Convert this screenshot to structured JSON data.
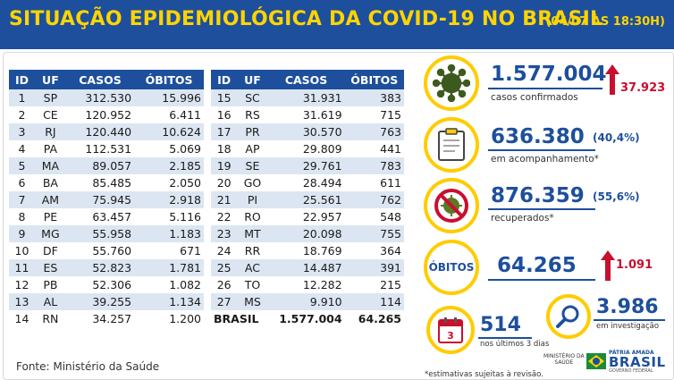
{
  "header": {
    "title": "SITUAÇÃO EPIDEMIOLÓGICA DA COVID-19 NO BRASIL",
    "date": "(04/07 ÀS 18:30H)"
  },
  "table": {
    "columns": [
      "ID",
      "UF",
      "CASOS",
      "ÓBITOS"
    ],
    "left_rows": [
      [
        "1",
        "SP",
        "312.530",
        "15.996"
      ],
      [
        "2",
        "CE",
        "120.952",
        "6.411"
      ],
      [
        "3",
        "RJ",
        "120.440",
        "10.624"
      ],
      [
        "4",
        "PA",
        "112.531",
        "5.069"
      ],
      [
        "5",
        "MA",
        "89.057",
        "2.185"
      ],
      [
        "6",
        "BA",
        "85.485",
        "2.050"
      ],
      [
        "7",
        "AM",
        "75.945",
        "2.918"
      ],
      [
        "8",
        "PE",
        "63.457",
        "5.116"
      ],
      [
        "9",
        "MG",
        "55.958",
        "1.183"
      ],
      [
        "10",
        "DF",
        "55.760",
        "671"
      ],
      [
        "11",
        "ES",
        "52.823",
        "1.781"
      ],
      [
        "12",
        "PB",
        "52.306",
        "1.082"
      ],
      [
        "13",
        "AL",
        "39.255",
        "1.134"
      ],
      [
        "14",
        "RN",
        "34.257",
        "1.200"
      ]
    ],
    "right_rows": [
      [
        "15",
        "SC",
        "31.931",
        "383"
      ],
      [
        "16",
        "RS",
        "31.619",
        "715"
      ],
      [
        "17",
        "PR",
        "30.570",
        "763"
      ],
      [
        "18",
        "AP",
        "29.809",
        "441"
      ],
      [
        "19",
        "SE",
        "29.761",
        "783"
      ],
      [
        "20",
        "GO",
        "28.494",
        "611"
      ],
      [
        "21",
        "PI",
        "25.561",
        "762"
      ],
      [
        "22",
        "RO",
        "22.957",
        "548"
      ],
      [
        "23",
        "MT",
        "20.098",
        "755"
      ],
      [
        "24",
        "RR",
        "18.769",
        "364"
      ],
      [
        "25",
        "AC",
        "14.487",
        "391"
      ],
      [
        "26",
        "TO",
        "12.282",
        "215"
      ],
      [
        "27",
        "MS",
        "9.910",
        "114"
      ]
    ],
    "total": {
      "label": "BRASIL",
      "cases": "1.577.004",
      "deaths": "64.265"
    }
  },
  "stats": {
    "confirmed": {
      "value": "1.577.004",
      "label": "casos confirmados",
      "delta": "37.923",
      "icon": "virus-icon"
    },
    "monitoring": {
      "value": "636.380",
      "pct": "(40,4%)",
      "label": "em acompanhamento*",
      "icon": "clipboard-icon"
    },
    "recovered": {
      "value": "876.359",
      "pct": "(55,6%)",
      "label": "recuperados*",
      "icon": "no-virus-icon"
    },
    "deaths": {
      "badge": "ÓBITOS",
      "value": "64.265",
      "delta": "1.091"
    },
    "last3days": {
      "value": "514",
      "label": "nos últimos 3 dias",
      "calendar": "3",
      "icon": "calendar-icon"
    },
    "investigation": {
      "value": "3.986",
      "label": "em investigação",
      "icon": "magnifier-icon"
    }
  },
  "footer": {
    "source": "Fonte: Ministério da Saúde",
    "footnote": "*estimativas sujeitas à revisão.",
    "ministry": [
      "MINISTÉRIO DA",
      "SAÚDE"
    ],
    "brand_top": "PÁTRIA AMADA",
    "brand_main": "BRASIL",
    "brand_sub": "GOVERNO FEDERAL"
  },
  "colors": {
    "accent": "#1d4f9c",
    "highlight": "#ffd400",
    "alert": "#c8102e",
    "stripe": "#dce6f2"
  }
}
